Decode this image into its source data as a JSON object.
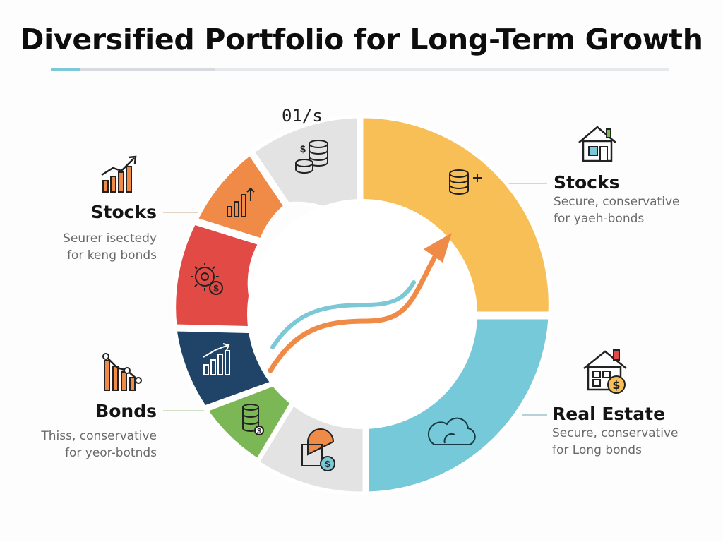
{
  "title": "Diversified Portfolio for Long-Term Growth",
  "wheel_top_label": "01/s",
  "colors": {
    "yellow": "#f8bf57",
    "blue": "#76c9d8",
    "gray": "#e3e3e3",
    "green": "#7cb756",
    "navy": "#1f4467",
    "red": "#e24a45",
    "orange": "#f08a47",
    "arrow_orange": "#f08a47",
    "arrow_teal": "#7cc8d6",
    "accent": "#7cc8d6"
  },
  "segments": [
    {
      "icon": "coin-stack-plus-icon",
      "color": "#f8bf57"
    },
    {
      "icon": "cloud-icon",
      "color": "#76c9d8"
    },
    {
      "icon": "house-dollar-pin-icon",
      "color": "#e3e3e3"
    },
    {
      "icon": "coin-stack-dollar-icon",
      "color": "#7cb756"
    },
    {
      "icon": "bar-chart-up-icon",
      "color": "#1f4467"
    },
    {
      "icon": "gear-dollar-icon",
      "color": "#e24a45"
    },
    {
      "icon": "bar-chart-arrow-icon",
      "color": "#f08a47"
    },
    {
      "icon": "dollar-coins-icon",
      "color": "#e3e3e3"
    }
  ],
  "callouts": {
    "top_right": {
      "heading": "Stocks",
      "line1": "Secure, conservative",
      "line2": "for yaeh-bonds",
      "icon": "house-icon"
    },
    "bottom_right": {
      "heading": "Real Estate",
      "line1": "Secure, conservative",
      "line2": "for Long bonds",
      "icon": "house-dollar-icon"
    },
    "top_left": {
      "heading": "Stocks",
      "line1": "Seurer isectedy",
      "line2": "for keng bonds",
      "icon": "growth-chart-icon"
    },
    "bottom_left": {
      "heading": "Bonds",
      "line1": "Thiss, conservative",
      "line2": "for yeor-botnds",
      "icon": "decline-chart-icon"
    }
  }
}
